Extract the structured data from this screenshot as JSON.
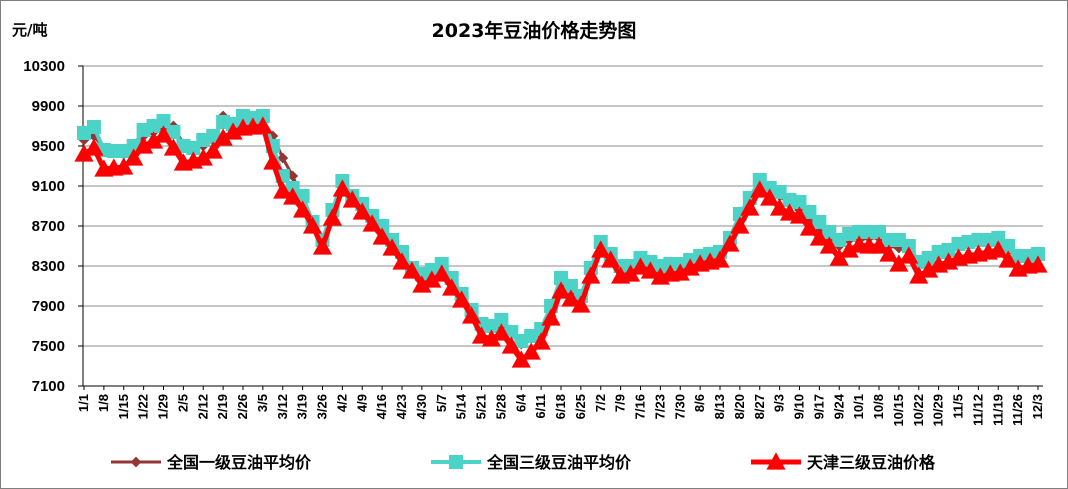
{
  "chart_data": {
    "type": "line",
    "title": "2023年豆油价格走势图",
    "ylabel": "元/吨",
    "xlabel": "",
    "ylim": [
      7100,
      10300
    ],
    "y_ticks": [
      7100,
      7500,
      7900,
      8300,
      8700,
      9100,
      9500,
      9900,
      10300
    ],
    "grid": "horizontal",
    "legend_position": "bottom",
    "x": [
      "1/1",
      "1/4",
      "1/8",
      "1/11",
      "1/15",
      "1/18",
      "1/22",
      "1/25",
      "1/29",
      "2/1",
      "2/5",
      "2/8",
      "2/12",
      "2/15",
      "2/19",
      "2/22",
      "2/26",
      "3/1",
      "3/5",
      "3/8",
      "3/12",
      "3/15",
      "3/19",
      "3/22",
      "3/26",
      "3/29",
      "4/2",
      "4/5",
      "4/9",
      "4/12",
      "4/16",
      "4/19",
      "4/23",
      "4/26",
      "4/30",
      "5/3",
      "5/7",
      "5/10",
      "5/14",
      "5/17",
      "5/21",
      "5/24",
      "5/28",
      "5/31",
      "6/4",
      "6/7",
      "6/11",
      "6/14",
      "6/18",
      "6/21",
      "6/25",
      "6/28",
      "7/2",
      "7/5",
      "7/9",
      "7/12",
      "7/16",
      "7/19",
      "7/23",
      "7/26",
      "7/30",
      "8/2",
      "8/6",
      "8/9",
      "8/13",
      "8/16",
      "8/20",
      "8/23",
      "8/27",
      "8/30",
      "9/3",
      "9/6",
      "9/10",
      "9/13",
      "9/17",
      "9/20",
      "9/24",
      "9/27",
      "10/1",
      "10/4",
      "10/8",
      "10/11",
      "10/15",
      "10/18",
      "10/22",
      "10/25",
      "10/29",
      "11/1",
      "11/5",
      "11/8",
      "11/12",
      "11/15",
      "11/19",
      "11/22",
      "11/26",
      "11/29",
      "12/3"
    ],
    "x_tick_labels": [
      "1/1",
      "1/8",
      "1/15",
      "1/22",
      "1/29",
      "2/5",
      "2/12",
      "2/19",
      "2/26",
      "3/5",
      "3/12",
      "3/19",
      "3/26",
      "4/2",
      "4/9",
      "4/16",
      "4/23",
      "4/30",
      "5/7",
      "5/14",
      "5/21",
      "5/28",
      "6/4",
      "6/11",
      "6/18",
      "6/25",
      "7/2",
      "7/9",
      "7/16",
      "7/23",
      "7/30",
      "8/6",
      "8/13",
      "8/20",
      "8/27",
      "9/3",
      "9/10",
      "9/17",
      "9/24",
      "10/1",
      "10/8",
      "10/15",
      "10/22",
      "10/29",
      "11/5",
      "11/12",
      "11/19",
      "11/26",
      "12/3"
    ],
    "series": [
      {
        "name": "全国一级豆油平均价",
        "color": "#943634",
        "marker": "diamond",
        "values": [
          9560,
          9600,
          9480,
          9440,
          9420,
          9480,
          9600,
          9640,
          9660,
          9700,
          9520,
          9480,
          9500,
          9560,
          9800,
          9720,
          9780,
          9760,
          9760,
          9600,
          9380,
          9200,
          8960,
          8720,
          8560,
          8800,
          9060,
          8940,
          8880,
          8700,
          8660,
          8500,
          8400,
          8240,
          8180,
          8220,
          8280,
          8160,
          8000,
          7820,
          7680,
          7660,
          7700,
          7620,
          7520,
          7580,
          7600,
          7800,
          8100,
          8040,
          7960,
          8200,
          8480,
          8360,
          8260,
          8240,
          8320,
          8300,
          8260,
          8280,
          8280,
          8320,
          8360,
          8400,
          8420,
          8560,
          8760,
          8960,
          9120,
          9060,
          9000,
          8920,
          8860,
          8780,
          8640,
          8580,
          8500,
          8560,
          8560,
          8580,
          8580,
          8500,
          8480,
          8460,
          8300,
          8360,
          8420,
          8440,
          8500,
          8520,
          8580,
          8520,
          8540,
          8460,
          8380,
          8360,
          8380
        ]
      },
      {
        "name": "全国三级豆油平均价",
        "color": "#4bd3c8",
        "marker": "square",
        "values": [
          9630,
          9690,
          9460,
          9450,
          9450,
          9500,
          9660,
          9700,
          9750,
          9640,
          9500,
          9480,
          9560,
          9600,
          9740,
          9720,
          9800,
          9780,
          9800,
          9500,
          9200,
          9080,
          9000,
          8740,
          8560,
          8860,
          9150,
          9000,
          8920,
          8800,
          8700,
          8560,
          8440,
          8280,
          8220,
          8260,
          8320,
          8180,
          8020,
          7860,
          7720,
          7700,
          7760,
          7640,
          7550,
          7600,
          7670,
          7900,
          8180,
          8100,
          8000,
          8280,
          8540,
          8420,
          8300,
          8300,
          8380,
          8340,
          8300,
          8320,
          8320,
          8360,
          8400,
          8420,
          8440,
          8580,
          8820,
          8980,
          9160,
          9080,
          9040,
          8960,
          8940,
          8840,
          8740,
          8640,
          8560,
          8620,
          8640,
          8640,
          8640,
          8560,
          8560,
          8500,
          8340,
          8380,
          8440,
          8460,
          8520,
          8540,
          8560,
          8560,
          8580,
          8500,
          8400,
          8400,
          8420
        ]
      },
      {
        "name": "天津三级豆油价格",
        "color": "#ff0000",
        "marker": "triangle",
        "values": [
          9420,
          9480,
          9270,
          9280,
          9290,
          9380,
          9500,
          9550,
          9610,
          9480,
          9330,
          9350,
          9380,
          9450,
          9580,
          9640,
          9680,
          9690,
          9700,
          9340,
          9050,
          8990,
          8860,
          8700,
          8490,
          8780,
          9070,
          8960,
          8840,
          8720,
          8590,
          8480,
          8340,
          8250,
          8110,
          8160,
          8220,
          8080,
          7960,
          7800,
          7600,
          7570,
          7630,
          7500,
          7360,
          7440,
          7540,
          7780,
          8050,
          7970,
          7910,
          8200,
          8460,
          8360,
          8200,
          8220,
          8290,
          8250,
          8190,
          8220,
          8230,
          8280,
          8320,
          8340,
          8360,
          8520,
          8700,
          8880,
          9060,
          8980,
          8880,
          8830,
          8800,
          8680,
          8580,
          8500,
          8380,
          8460,
          8510,
          8500,
          8500,
          8420,
          8320,
          8400,
          8200,
          8260,
          8310,
          8340,
          8380,
          8400,
          8420,
          8440,
          8460,
          8360,
          8270,
          8300,
          8310
        ]
      }
    ]
  }
}
